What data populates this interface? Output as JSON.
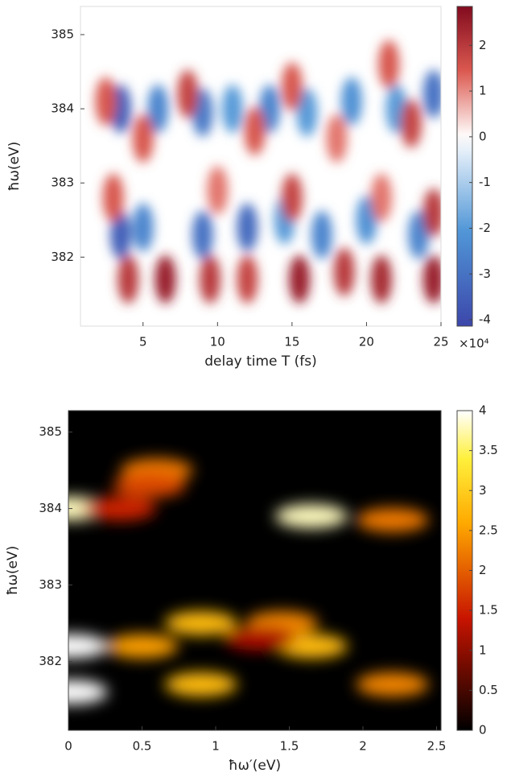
{
  "chart_data": [
    {
      "type": "heatmap",
      "colormap": "bwr",
      "xlabel": "delay time T (fs)",
      "ylabel": "ħω(eV)",
      "xlim": [
        0.8,
        25
      ],
      "xticks": [
        5,
        10,
        15,
        20,
        25
      ],
      "ylim": [
        381.07,
        385.38
      ],
      "yticks": [
        382,
        383,
        384,
        385
      ],
      "clim": [
        -4.14,
        2.85
      ],
      "cticks": [
        -4,
        -3,
        -2,
        -1,
        0,
        1,
        2
      ],
      "colorbar_multiplier": "×10⁴",
      "x": [
        3.5,
        6,
        9,
        11,
        13.5,
        16,
        19,
        22,
        24.5,
        3.5,
        5,
        9,
        12,
        14.5,
        17,
        20,
        23.5,
        4,
        6.5,
        9.5,
        12,
        15.5,
        18.5,
        21,
        24.5,
        2.5,
        5,
        8,
        12.5,
        15,
        18,
        23,
        21.5,
        3,
        10,
        15,
        21,
        24.5
      ],
      "y": [
        384.0,
        384.0,
        383.95,
        384.0,
        384.0,
        383.95,
        384.1,
        384.0,
        384.2,
        382.3,
        382.4,
        382.3,
        382.4,
        382.5,
        382.3,
        382.5,
        382.3,
        381.7,
        381.7,
        381.7,
        381.7,
        381.7,
        381.8,
        381.7,
        381.7,
        384.1,
        383.6,
        384.2,
        383.7,
        384.3,
        383.6,
        383.8,
        384.6,
        382.8,
        382.9,
        382.8,
        382.8,
        382.6
      ],
      "values": [
        -3.5,
        -2.5,
        -2.8,
        -2.0,
        -2.5,
        -2.0,
        -2.2,
        -2.0,
        -3.0,
        -3.5,
        -2.5,
        -3.0,
        -3.2,
        -2.0,
        -2.5,
        -2.2,
        -2.5,
        2.0,
        2.5,
        2.0,
        1.8,
        2.5,
        2.0,
        2.3,
        2.5,
        1.5,
        1.5,
        1.8,
        1.5,
        1.5,
        1.2,
        1.8,
        1.5,
        1.5,
        1.2,
        1.8,
        1.2,
        2.0
      ]
    },
    {
      "type": "heatmap",
      "colormap": "hot",
      "xlabel": "ħω′(eV)",
      "ylabel": "ħω(eV)",
      "xlim": [
        0,
        2.53
      ],
      "xticks": [
        0,
        0.5,
        1,
        1.5,
        2,
        2.5
      ],
      "ylim": [
        381.1,
        385.28
      ],
      "yticks": [
        382,
        383,
        384,
        385
      ],
      "clim": [
        0,
        4
      ],
      "cticks": [
        0,
        0.5,
        1,
        1.5,
        2,
        2.5,
        3,
        3.5,
        4
      ],
      "x": [
        0.02,
        0.02,
        0.02,
        0.6,
        0.55,
        0.35,
        0.9,
        1.45,
        0.5,
        1.65,
        2.2,
        1.65,
        0.9,
        2.2,
        1.3
      ],
      "y": [
        384.0,
        382.2,
        381.6,
        384.5,
        384.3,
        384.0,
        382.5,
        382.5,
        382.2,
        383.9,
        383.85,
        382.2,
        381.7,
        381.7,
        382.3
      ],
      "values": [
        3.8,
        4.0,
        4.0,
        2.2,
        1.8,
        1.5,
        2.8,
        2.3,
        2.5,
        3.8,
        2.2,
        2.8,
        2.8,
        2.3,
        1.2
      ]
    }
  ]
}
